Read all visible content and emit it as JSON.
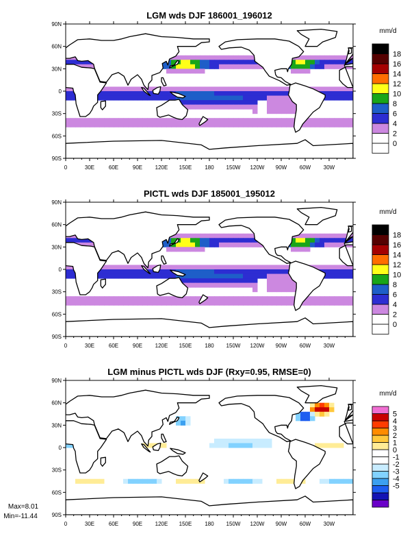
{
  "figure": {
    "stats": {
      "max_label": "Max=8.01",
      "min_label": "Min=-11.44"
    }
  },
  "chart_data": [
    {
      "type": "heatmap",
      "title": "LGM wds DJF 186001_196012",
      "lon_ticks": [
        "0",
        "30E",
        "60E",
        "90E",
        "120E",
        "150E",
        "180",
        "150W",
        "120W",
        "90W",
        "60W",
        "30W"
      ],
      "lat_ticks": [
        "90N",
        "60N",
        "30N",
        "0",
        "30S",
        "60S",
        "90S"
      ],
      "xlim": [
        0,
        360
      ],
      "ylim": [
        -90,
        90
      ],
      "colorbar": {
        "unit": "mm/d",
        "levels": [
          0,
          2,
          4,
          6,
          8,
          10,
          12,
          14,
          16,
          18
        ],
        "labels": [
          "0",
          "2",
          "4",
          "6",
          "8",
          "10",
          "12",
          "14",
          "16",
          "18"
        ],
        "colors": [
          "#ffffff",
          "#ffffff",
          "#cc88e0",
          "#2d2dd2",
          "#1e5ec8",
          "#19a519",
          "#ffff19",
          "#ff6e00",
          "#a50000",
          "#550000",
          "#000000"
        ]
      }
    },
    {
      "type": "heatmap",
      "title": "PICTL wds DJF 185001_195012",
      "lon_ticks": [
        "0",
        "30E",
        "60E",
        "90E",
        "120E",
        "150E",
        "180",
        "150W",
        "120W",
        "90W",
        "60W",
        "30W"
      ],
      "lat_ticks": [
        "90N",
        "60N",
        "30N",
        "0",
        "30S",
        "60S",
        "90S"
      ],
      "xlim": [
        0,
        360
      ],
      "ylim": [
        -90,
        90
      ],
      "colorbar": {
        "unit": "mm/d",
        "levels": [
          0,
          2,
          4,
          6,
          8,
          10,
          12,
          14,
          16,
          18
        ],
        "labels": [
          "0",
          "2",
          "4",
          "6",
          "8",
          "10",
          "12",
          "14",
          "16",
          "18"
        ],
        "colors": [
          "#ffffff",
          "#ffffff",
          "#cc88e0",
          "#2d2dd2",
          "#1e5ec8",
          "#19a519",
          "#ffff19",
          "#ff6e00",
          "#a50000",
          "#550000",
          "#000000"
        ]
      }
    },
    {
      "type": "heatmap",
      "title": "LGM minus PICTL wds DJF (Rxy=0.95, RMSE=0)",
      "lon_ticks": [
        "0",
        "30E",
        "60E",
        "90E",
        "120E",
        "150E",
        "180",
        "150W",
        "120W",
        "90W",
        "60W",
        "30W"
      ],
      "lat_ticks": [
        "90N",
        "60N",
        "30N",
        "0",
        "30S",
        "60S",
        "90S"
      ],
      "xlim": [
        0,
        360
      ],
      "ylim": [
        -90,
        90
      ],
      "colorbar": {
        "unit": "mm/d",
        "levels": [
          -5,
          -4,
          -3,
          -2,
          -1,
          0,
          1,
          2,
          3,
          4,
          5
        ],
        "labels": [
          "-5",
          "-4",
          "-3",
          "-2",
          "-1",
          "0",
          "1",
          "2",
          "3",
          "4",
          "5"
        ],
        "colors": [
          "#6a00c8",
          "#1414b4",
          "#1e5ef0",
          "#3ca0f0",
          "#82d2ff",
          "#c8ecff",
          "#ffffff",
          "#ffffff",
          "#ffec96",
          "#ffc83c",
          "#ff8c00",
          "#ff3c00",
          "#c80000",
          "#f06ed2"
        ]
      }
    }
  ]
}
